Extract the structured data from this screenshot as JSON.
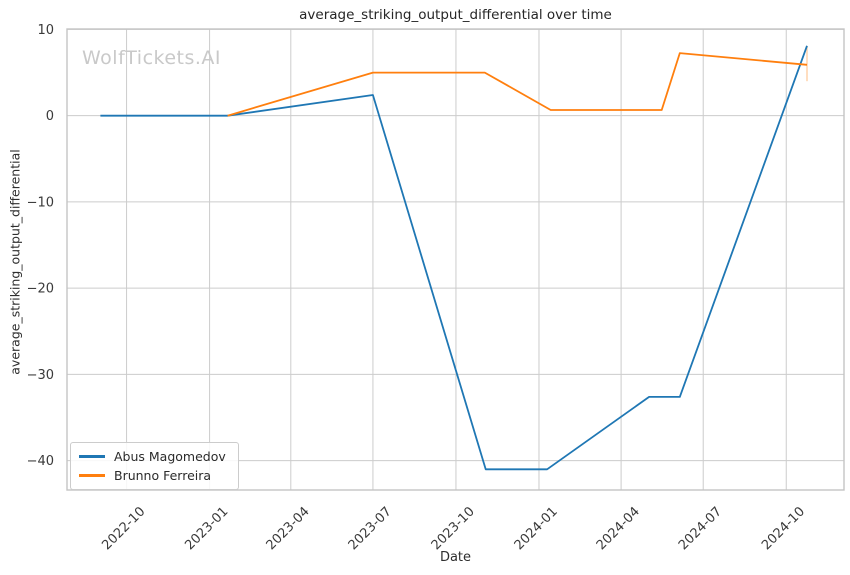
{
  "watermark": "WolfTickets.AI",
  "colors": {
    "series_blue": "#1f77b4",
    "series_orange": "#ff7f0e",
    "grid": "#cccccc",
    "spine": "#c4c4c4",
    "text": "#2e2e2e",
    "watermark": "#c9c9c9"
  },
  "chart_data": {
    "type": "line",
    "title": "average_striking_output_differential over time",
    "xlabel": "Date",
    "ylabel": "average_striking_output_differential",
    "grid": true,
    "legend_position": "lower left",
    "x_tick_labels": [
      "2022-10",
      "2023-01",
      "2023-04",
      "2023-07",
      "2023-10",
      "2024-01",
      "2024-04",
      "2024-07",
      "2024-10"
    ],
    "y_ticks": [
      10,
      0,
      -10,
      -20,
      -30,
      -40
    ],
    "xlim": [
      "2022-07-27",
      "2024-12-04"
    ],
    "ylim": [
      -43.4,
      10.05
    ],
    "series": [
      {
        "name": "Abus Magomedov",
        "color": "#1f77b4",
        "points": [
          [
            "2022-09-02",
            0
          ],
          [
            "2023-01-21",
            0
          ],
          [
            "2023-07-01",
            2.4
          ],
          [
            "2023-11-03",
            -41
          ],
          [
            "2024-01-10",
            -41
          ],
          [
            "2024-05-02",
            -32.6
          ],
          [
            "2024-06-05",
            -32.6
          ],
          [
            "2024-10-24",
            8.1
          ]
        ]
      },
      {
        "name": "Brunno Ferreira",
        "color": "#ff7f0e",
        "points": [
          [
            "2023-01-21",
            0
          ],
          [
            "2023-07-01",
            5.0
          ],
          [
            "2023-11-02",
            5.0
          ],
          [
            "2024-01-14",
            0.66
          ],
          [
            "2024-05-16",
            0.66
          ],
          [
            "2024-06-05",
            7.26
          ],
          [
            "2024-10-24",
            5.9
          ]
        ]
      }
    ],
    "end_tick": {
      "date": "2024-10-24",
      "y_from": 8.0,
      "y_to": 4.0,
      "color": "#ff7f0e",
      "opacity": 0.35
    }
  }
}
